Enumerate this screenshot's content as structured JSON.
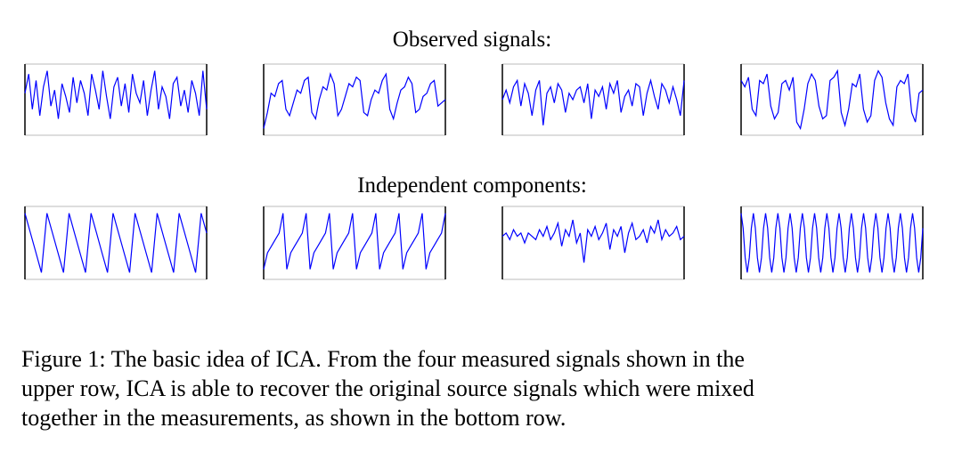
{
  "figure": {
    "headings": [
      "Observed signals:",
      "Independent components:"
    ],
    "caption_lines": [
      "Figure 1: The basic idea of ICA. From the four measured signals shown in the",
      "upper row, ICA is able to recover the original source signals which were mixed",
      "together in the measurements, as shown in the bottom row."
    ]
  },
  "chart_data": [
    {
      "type": "line",
      "color": "#0000ff",
      "ylim": [
        -1,
        1
      ],
      "values": [
        0.2,
        0.8,
        -0.3,
        0.6,
        -0.5,
        0.4,
        0.9,
        -0.2,
        0.3,
        -0.6,
        0.5,
        0.1,
        -0.4,
        0.7,
        -0.1,
        0.6,
        0.2,
        -0.5,
        0.8,
        0.3,
        -0.3,
        0.9,
        0.1,
        -0.6,
        0.4,
        0.7,
        -0.2,
        0.5,
        -0.4,
        0.8,
        0.2,
        -0.1,
        0.6,
        -0.5,
        0.3,
        0.9,
        -0.3,
        0.4,
        0.1,
        -0.6,
        0.5,
        0.7,
        -0.2,
        0.3,
        -0.4,
        0.6,
        0.2,
        -0.5,
        0.9,
        -0.3
      ]
    },
    {
      "type": "line",
      "color": "#0000ff",
      "ylim": [
        -1,
        1
      ],
      "values": [
        -0.9,
        -0.4,
        0.2,
        0.1,
        0.5,
        0.6,
        -0.3,
        -0.5,
        -0.1,
        0.3,
        0.2,
        0.6,
        0.7,
        -0.4,
        -0.6,
        0.0,
        0.4,
        0.3,
        0.8,
        0.5,
        -0.5,
        -0.3,
        0.1,
        0.5,
        0.4,
        0.7,
        0.6,
        -0.4,
        -0.5,
        0.0,
        0.3,
        0.2,
        0.6,
        0.8,
        -0.3,
        -0.6,
        -0.1,
        0.3,
        0.4,
        0.7,
        0.5,
        -0.4,
        -0.3,
        0.1,
        0.2,
        0.5,
        0.6,
        -0.2,
        -0.1,
        0.0
      ]
    },
    {
      "type": "line",
      "color": "#0000ff",
      "ylim": [
        -1,
        1
      ],
      "values": [
        0.0,
        0.3,
        -0.1,
        0.4,
        0.6,
        -0.2,
        0.5,
        0.2,
        -0.5,
        0.3,
        0.6,
        -0.8,
        0.2,
        0.4,
        -0.1,
        0.5,
        0.3,
        -0.4,
        0.2,
        0.0,
        0.3,
        0.4,
        -0.1,
        0.5,
        -0.6,
        0.3,
        0.1,
        0.4,
        -0.3,
        0.5,
        0.2,
        0.6,
        -0.4,
        0.1,
        0.3,
        -0.2,
        0.5,
        0.4,
        -0.5,
        0.2,
        0.6,
        0.1,
        -0.3,
        0.5,
        0.3,
        -0.1,
        0.4,
        0.0,
        -0.5,
        0.6
      ]
    },
    {
      "type": "line",
      "color": "#0000ff",
      "ylim": [
        -1,
        1
      ],
      "values": [
        0.6,
        0.4,
        0.7,
        -0.3,
        -0.5,
        0.6,
        0.5,
        0.8,
        -0.2,
        -0.6,
        -0.4,
        0.5,
        0.6,
        0.3,
        0.7,
        -0.7,
        -0.9,
        -0.3,
        0.5,
        0.8,
        0.6,
        -0.2,
        -0.6,
        -0.5,
        0.6,
        0.7,
        0.9,
        -0.4,
        -0.8,
        -0.3,
        0.5,
        0.4,
        0.8,
        -0.3,
        -0.7,
        -0.5,
        0.6,
        0.9,
        0.7,
        -0.1,
        -0.6,
        -0.8,
        0.4,
        0.6,
        0.5,
        0.8,
        -0.4,
        -0.7,
        0.2,
        0.3
      ]
    },
    {
      "type": "line",
      "color": "#0000ff",
      "ylim": [
        -1,
        1
      ],
      "values": [
        0.9,
        0.3,
        -0.3,
        -0.9,
        0.9,
        0.3,
        -0.3,
        -0.9,
        0.9,
        0.3,
        -0.3,
        -0.9,
        0.9,
        0.3,
        -0.3,
        -0.9,
        0.9,
        0.3,
        -0.3,
        -0.9,
        0.9,
        0.3,
        -0.3,
        -0.9,
        0.9,
        0.3,
        -0.3,
        -0.9,
        0.9,
        0.3,
        -0.3,
        -0.9,
        0.9,
        0.3
      ]
    },
    {
      "type": "line",
      "color": "#0000ff",
      "ylim": [
        -1,
        1
      ],
      "values": [
        -0.8,
        -0.3,
        -0.1,
        0.1,
        0.3,
        0.9,
        -0.8,
        -0.3,
        -0.1,
        0.1,
        0.3,
        0.9,
        -0.8,
        -0.3,
        -0.1,
        0.1,
        0.3,
        0.9,
        -0.8,
        -0.3,
        -0.1,
        0.1,
        0.3,
        0.9,
        -0.8,
        -0.3,
        -0.1,
        0.1,
        0.3,
        0.9,
        -0.8,
        -0.3,
        -0.1,
        0.1,
        0.3,
        0.9,
        -0.8,
        -0.3,
        -0.1,
        0.1,
        0.3,
        0.9,
        -0.8,
        -0.3,
        -0.1,
        0.1,
        0.3,
        0.9
      ]
    },
    {
      "type": "line",
      "color": "#0000ff",
      "ylim": [
        -1,
        1
      ],
      "values": [
        0.2,
        0.3,
        0.1,
        0.4,
        0.2,
        0.3,
        0.0,
        0.3,
        0.2,
        0.1,
        0.4,
        0.2,
        0.5,
        0.1,
        0.3,
        0.6,
        -0.1,
        0.4,
        0.2,
        0.7,
        0.0,
        0.3,
        -0.6,
        0.4,
        0.2,
        0.5,
        0.1,
        0.3,
        0.6,
        -0.2,
        0.4,
        0.2,
        0.5,
        -0.3,
        0.3,
        0.6,
        0.1,
        0.2,
        0.4,
        0.0,
        0.5,
        0.3,
        0.7,
        0.1,
        0.4,
        0.2,
        0.3,
        0.5,
        0.1,
        0.2
      ]
    },
    {
      "type": "line",
      "color": "#0000ff",
      "ylim": [
        -1,
        1
      ],
      "values": [
        0.9,
        0.45,
        -0.45,
        -0.9,
        -0.45,
        0.45,
        0.9,
        0.45,
        -0.45,
        -0.9,
        -0.45,
        0.45,
        0.9,
        0.45,
        -0.45,
        -0.9,
        -0.45,
        0.45,
        0.9,
        0.45,
        -0.45,
        -0.9,
        -0.45,
        0.45,
        0.9,
        0.45,
        -0.45,
        -0.9,
        -0.45,
        0.45,
        0.9,
        0.45,
        -0.45,
        -0.9,
        -0.45,
        0.45,
        0.9,
        0.45,
        -0.45,
        -0.9,
        -0.45,
        0.45,
        0.9,
        0.45,
        -0.45,
        -0.9,
        -0.45,
        0.45,
        0.9,
        0.45,
        -0.45,
        -0.9,
        -0.45,
        0.45,
        0.9,
        0.45,
        -0.45,
        -0.9,
        -0.45,
        0.45,
        0.9,
        0.45,
        -0.45,
        -0.9,
        -0.45,
        0.45,
        0.9,
        0.45,
        -0.45,
        -0.9,
        -0.45,
        0.45,
        0.9,
        0.45,
        -0.45,
        -0.9,
        -0.45,
        0.45,
        0.9,
        0.45,
        -0.45,
        -0.9,
        -0.45,
        0.45,
        0.9,
        0.45,
        -0.45,
        -0.9,
        -0.45,
        0.45
      ]
    }
  ]
}
